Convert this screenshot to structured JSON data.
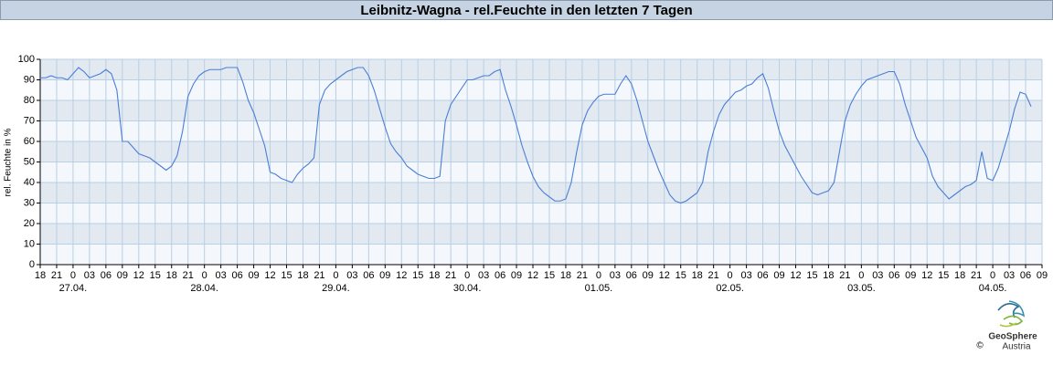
{
  "chart_data": {
    "type": "line",
    "title": "Leibnitz-Wagna - rel.Feuchte in den letzten 7 Tagen",
    "y_label": "rel. Feuchte in %",
    "logo": {
      "name": "GeoSphere",
      "subname": "Austria",
      "copyright": "©"
    },
    "x": [
      0,
      1,
      2,
      3,
      4,
      5,
      6,
      7,
      8,
      9,
      10,
      11,
      12,
      13,
      14,
      15,
      16,
      17,
      18,
      19,
      20,
      21,
      22,
      23,
      24,
      25,
      26,
      27,
      28,
      29,
      30,
      31,
      32,
      33,
      34,
      35,
      36,
      37,
      38,
      39,
      40,
      41,
      42,
      43,
      44,
      45,
      46,
      47,
      48,
      49,
      50,
      51,
      52,
      53,
      54,
      55,
      56,
      57,
      58,
      59,
      60,
      61,
      62,
      63,
      64,
      65,
      66,
      67,
      68,
      69,
      70,
      71,
      72,
      73,
      74,
      75,
      76,
      77,
      78,
      79,
      80,
      81,
      82,
      83,
      84,
      85,
      86,
      87,
      88,
      89,
      90,
      91,
      92,
      93,
      94,
      95,
      96,
      97,
      98,
      99,
      100,
      101,
      102,
      103,
      104,
      105,
      106,
      107,
      108,
      109,
      110,
      111,
      112,
      113,
      114,
      115,
      116,
      117,
      118,
      119,
      120,
      121,
      122,
      123,
      124,
      125,
      126,
      127,
      128,
      129,
      130,
      131,
      132,
      133,
      134,
      135,
      136,
      137,
      138,
      139,
      140,
      141,
      142,
      143,
      144,
      145,
      146,
      147,
      148,
      149,
      150,
      151,
      152,
      153,
      154,
      155,
      156,
      157,
      158,
      159,
      160,
      161,
      162,
      163,
      164,
      165,
      166,
      167,
      168,
      169,
      170,
      171,
      172,
      173,
      174,
      175,
      176,
      177,
      178,
      179,
      180,
      181
    ],
    "series": [
      {
        "name": "rel. Feuchte",
        "color": "#4a7fd6",
        "values": [
          91,
          91,
          92,
          91,
          91,
          90,
          93,
          96,
          94,
          91,
          92,
          93,
          95,
          93,
          85,
          60,
          60,
          57,
          54,
          53,
          52,
          50,
          48,
          46,
          48,
          53,
          65,
          82,
          88,
          92,
          94,
          95,
          95,
          95,
          96,
          96,
          96,
          89,
          80,
          74,
          66,
          58,
          45,
          44,
          42,
          41,
          40,
          44,
          47,
          49,
          52,
          78,
          85,
          88,
          90,
          92,
          94,
          95,
          96,
          96,
          92,
          85,
          76,
          67,
          59,
          55,
          52,
          48,
          46,
          44,
          43,
          42,
          42,
          43,
          70,
          78,
          82,
          86,
          90,
          90,
          91,
          92,
          92,
          94,
          95,
          85,
          77,
          68,
          58,
          50,
          43,
          38,
          35,
          33,
          31,
          31,
          32,
          40,
          55,
          68,
          75,
          79,
          82,
          83,
          83,
          83,
          88,
          92,
          88,
          80,
          70,
          60,
          53,
          46,
          40,
          34,
          31,
          30,
          31,
          33,
          35,
          40,
          55,
          65,
          73,
          78,
          81,
          84,
          85,
          87,
          88,
          91,
          93,
          86,
          75,
          65,
          58,
          53,
          48,
          43,
          39,
          35,
          34,
          35,
          36,
          40,
          55,
          70,
          78,
          83,
          87,
          90,
          91,
          92,
          93,
          94,
          94,
          88,
          78,
          70,
          62,
          57,
          52,
          43,
          38,
          35,
          32,
          34,
          36,
          38,
          39,
          41,
          55,
          42,
          41,
          47,
          56,
          65,
          76,
          84,
          83,
          77
        ]
      }
    ],
    "xlim": [
      0,
      183
    ],
    "xticks": [
      {
        "value": 0,
        "label": "18"
      },
      {
        "value": 3,
        "label": "21"
      },
      {
        "value": 6,
        "label": "0"
      },
      {
        "value": 9,
        "label": "03"
      },
      {
        "value": 12,
        "label": "06"
      },
      {
        "value": 15,
        "label": "09"
      },
      {
        "value": 18,
        "label": "12"
      },
      {
        "value": 21,
        "label": "15"
      },
      {
        "value": 24,
        "label": "18"
      },
      {
        "value": 27,
        "label": "21"
      },
      {
        "value": 30,
        "label": "0"
      },
      {
        "value": 33,
        "label": "03"
      },
      {
        "value": 36,
        "label": "06"
      },
      {
        "value": 39,
        "label": "09"
      },
      {
        "value": 42,
        "label": "12"
      },
      {
        "value": 45,
        "label": "15"
      },
      {
        "value": 48,
        "label": "18"
      },
      {
        "value": 51,
        "label": "21"
      },
      {
        "value": 54,
        "label": "0"
      },
      {
        "value": 57,
        "label": "03"
      },
      {
        "value": 60,
        "label": "06"
      },
      {
        "value": 63,
        "label": "09"
      },
      {
        "value": 66,
        "label": "12"
      },
      {
        "value": 69,
        "label": "15"
      },
      {
        "value": 72,
        "label": "18"
      },
      {
        "value": 75,
        "label": "21"
      },
      {
        "value": 78,
        "label": "0"
      },
      {
        "value": 81,
        "label": "03"
      },
      {
        "value": 84,
        "label": "06"
      },
      {
        "value": 87,
        "label": "09"
      },
      {
        "value": 90,
        "label": "12"
      },
      {
        "value": 93,
        "label": "15"
      },
      {
        "value": 96,
        "label": "18"
      },
      {
        "value": 99,
        "label": "21"
      },
      {
        "value": 102,
        "label": "0"
      },
      {
        "value": 105,
        "label": "03"
      },
      {
        "value": 108,
        "label": "06"
      },
      {
        "value": 111,
        "label": "09"
      },
      {
        "value": 114,
        "label": "12"
      },
      {
        "value": 117,
        "label": "15"
      },
      {
        "value": 120,
        "label": "18"
      },
      {
        "value": 123,
        "label": "21"
      },
      {
        "value": 126,
        "label": "0"
      },
      {
        "value": 129,
        "label": "03"
      },
      {
        "value": 132,
        "label": "06"
      },
      {
        "value": 135,
        "label": "09"
      },
      {
        "value": 138,
        "label": "12"
      },
      {
        "value": 141,
        "label": "15"
      },
      {
        "value": 144,
        "label": "18"
      },
      {
        "value": 147,
        "label": "21"
      },
      {
        "value": 150,
        "label": "0"
      },
      {
        "value": 153,
        "label": "03"
      },
      {
        "value": 156,
        "label": "06"
      },
      {
        "value": 159,
        "label": "09"
      },
      {
        "value": 162,
        "label": "12"
      },
      {
        "value": 165,
        "label": "15"
      },
      {
        "value": 168,
        "label": "18"
      },
      {
        "value": 171,
        "label": "21"
      },
      {
        "value": 174,
        "label": "0"
      },
      {
        "value": 177,
        "label": "03"
      },
      {
        "value": 180,
        "label": "06"
      },
      {
        "value": 183,
        "label": "09"
      }
    ],
    "date_labels": [
      {
        "value": 6,
        "label": "27.04."
      },
      {
        "value": 30,
        "label": "28.04."
      },
      {
        "value": 54,
        "label": "29.04."
      },
      {
        "value": 78,
        "label": "30.04."
      },
      {
        "value": 102,
        "label": "01.05."
      },
      {
        "value": 126,
        "label": "02.05."
      },
      {
        "value": 150,
        "label": "03.05."
      },
      {
        "value": 174,
        "label": "04.05."
      }
    ],
    "ylim": [
      0,
      100
    ],
    "yticks": [
      0,
      10,
      20,
      30,
      40,
      50,
      60,
      70,
      80,
      90,
      100
    ],
    "grid": true
  }
}
